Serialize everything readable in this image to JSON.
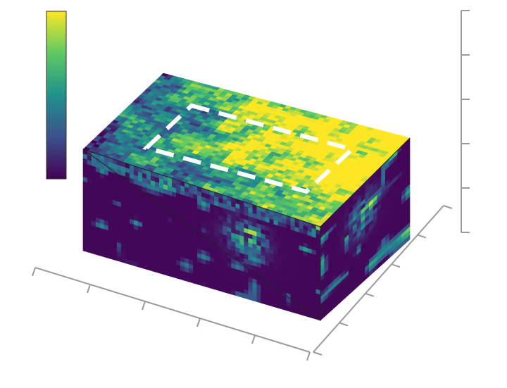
{
  "chart_data": {
    "type": "voxel",
    "colormap": [
      "#440154",
      "#3b528b",
      "#21918c",
      "#5ec962",
      "#fde725"
    ],
    "colorbar": true
  }
}
